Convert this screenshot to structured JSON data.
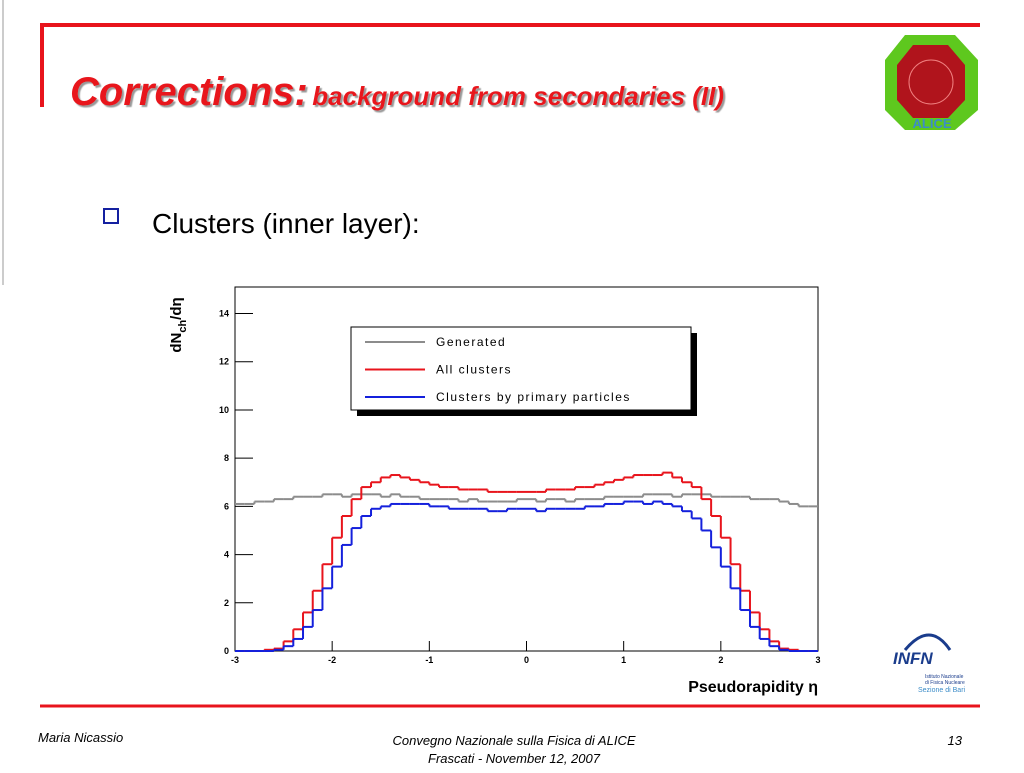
{
  "header": {
    "title": "Corrections:",
    "subtitle": "background from secondaries (II)"
  },
  "logos": {
    "alice": "ALICE",
    "infn": "INFN",
    "infn_lines": [
      "Istituto Nazionale",
      "di Fisica Nucleare"
    ],
    "infn_section": "Sezione di Bari"
  },
  "bullet": "Clusters (inner layer):",
  "chart_data": {
    "type": "histogram",
    "ylabel": [
      "dN",
      "ch",
      "/dη"
    ],
    "xlabel": "Pseudorapidity η",
    "bins": [
      -3,
      -2.9,
      -2.8,
      -2.7,
      -2.6,
      -2.5,
      -2.4,
      -2.3,
      -2.2,
      -2.1,
      -2,
      -1.9,
      -1.8,
      -1.7,
      -1.6,
      -1.5,
      -1.4,
      -1.3,
      -1.2,
      -1.1,
      -1,
      -0.9,
      -0.8,
      -0.7,
      -0.6,
      -0.5,
      -0.4,
      -0.3,
      -0.2,
      -0.1,
      0,
      0.1,
      0.2,
      0.3,
      0.4,
      0.5,
      0.6,
      0.7,
      0.8,
      0.9,
      1,
      1.1,
      1.2,
      1.3,
      1.4,
      1.5,
      1.6,
      1.7,
      1.8,
      1.9,
      2,
      2.1,
      2.2,
      2.3,
      2.4,
      2.5,
      2.6,
      2.7,
      2.8,
      2.9,
      3
    ],
    "series": [
      {
        "name": "Generated",
        "color": "#8c8c8c",
        "values": [
          6.1,
          6.1,
          6.2,
          6.2,
          6.3,
          6.3,
          6.4,
          6.4,
          6.4,
          6.5,
          6.5,
          6.4,
          6.5,
          6.5,
          6.5,
          6.4,
          6.5,
          6.4,
          6.4,
          6.3,
          6.3,
          6.3,
          6.3,
          6.2,
          6.3,
          6.2,
          6.2,
          6.2,
          6.2,
          6.3,
          6.3,
          6.2,
          6.3,
          6.3,
          6.2,
          6.3,
          6.3,
          6.3,
          6.4,
          6.4,
          6.4,
          6.4,
          6.5,
          6.5,
          6.5,
          6.4,
          6.5,
          6.5,
          6.5,
          6.4,
          6.4,
          6.4,
          6.4,
          6.3,
          6.3,
          6.3,
          6.2,
          6.1,
          6.0,
          6.0
        ]
      },
      {
        "name": "All clusters",
        "color": "#e8141c",
        "values": [
          0,
          0,
          0,
          0.05,
          0.1,
          0.4,
          0.9,
          1.6,
          2.5,
          3.6,
          4.7,
          5.6,
          6.3,
          6.8,
          7.0,
          7.2,
          7.3,
          7.2,
          7.1,
          7.0,
          6.9,
          6.8,
          6.8,
          6.7,
          6.7,
          6.7,
          6.6,
          6.6,
          6.6,
          6.6,
          6.6,
          6.6,
          6.7,
          6.7,
          6.7,
          6.8,
          6.8,
          6.9,
          7.0,
          7.1,
          7.2,
          7.3,
          7.3,
          7.3,
          7.4,
          7.2,
          7.0,
          6.8,
          6.3,
          5.6,
          4.7,
          3.6,
          2.5,
          1.6,
          0.9,
          0.4,
          0.1,
          0.05,
          0,
          0
        ]
      },
      {
        "name": "Clusters by primary particles",
        "color": "#1420dc",
        "values": [
          0,
          0,
          0,
          0,
          0.05,
          0.2,
          0.5,
          1.0,
          1.7,
          2.6,
          3.5,
          4.4,
          5.1,
          5.6,
          5.9,
          6.0,
          6.1,
          6.1,
          6.1,
          6.1,
          6.0,
          6.0,
          5.9,
          5.9,
          5.9,
          5.9,
          5.8,
          5.8,
          5.9,
          5.9,
          5.9,
          5.8,
          5.9,
          5.9,
          5.9,
          5.9,
          6.0,
          6.0,
          6.1,
          6.1,
          6.2,
          6.2,
          6.1,
          6.2,
          6.1,
          6.0,
          5.8,
          5.5,
          5.0,
          4.3,
          3.5,
          2.6,
          1.7,
          1.0,
          0.5,
          0.2,
          0.05,
          0,
          0,
          0
        ]
      }
    ],
    "xlim": [
      -3,
      3
    ],
    "ylim": [
      0,
      15.1
    ],
    "xticks": [
      -3,
      -2,
      -1,
      0,
      1,
      2,
      3
    ],
    "yticks": [
      0,
      2,
      4,
      6,
      8,
      10,
      12,
      14
    ]
  },
  "footer": {
    "author": "Maria Nicassio",
    "conference": "Convegno Nazionale sulla Fisica di ALICE",
    "date": "Frascati -  November 12, 2007",
    "page": "13"
  }
}
